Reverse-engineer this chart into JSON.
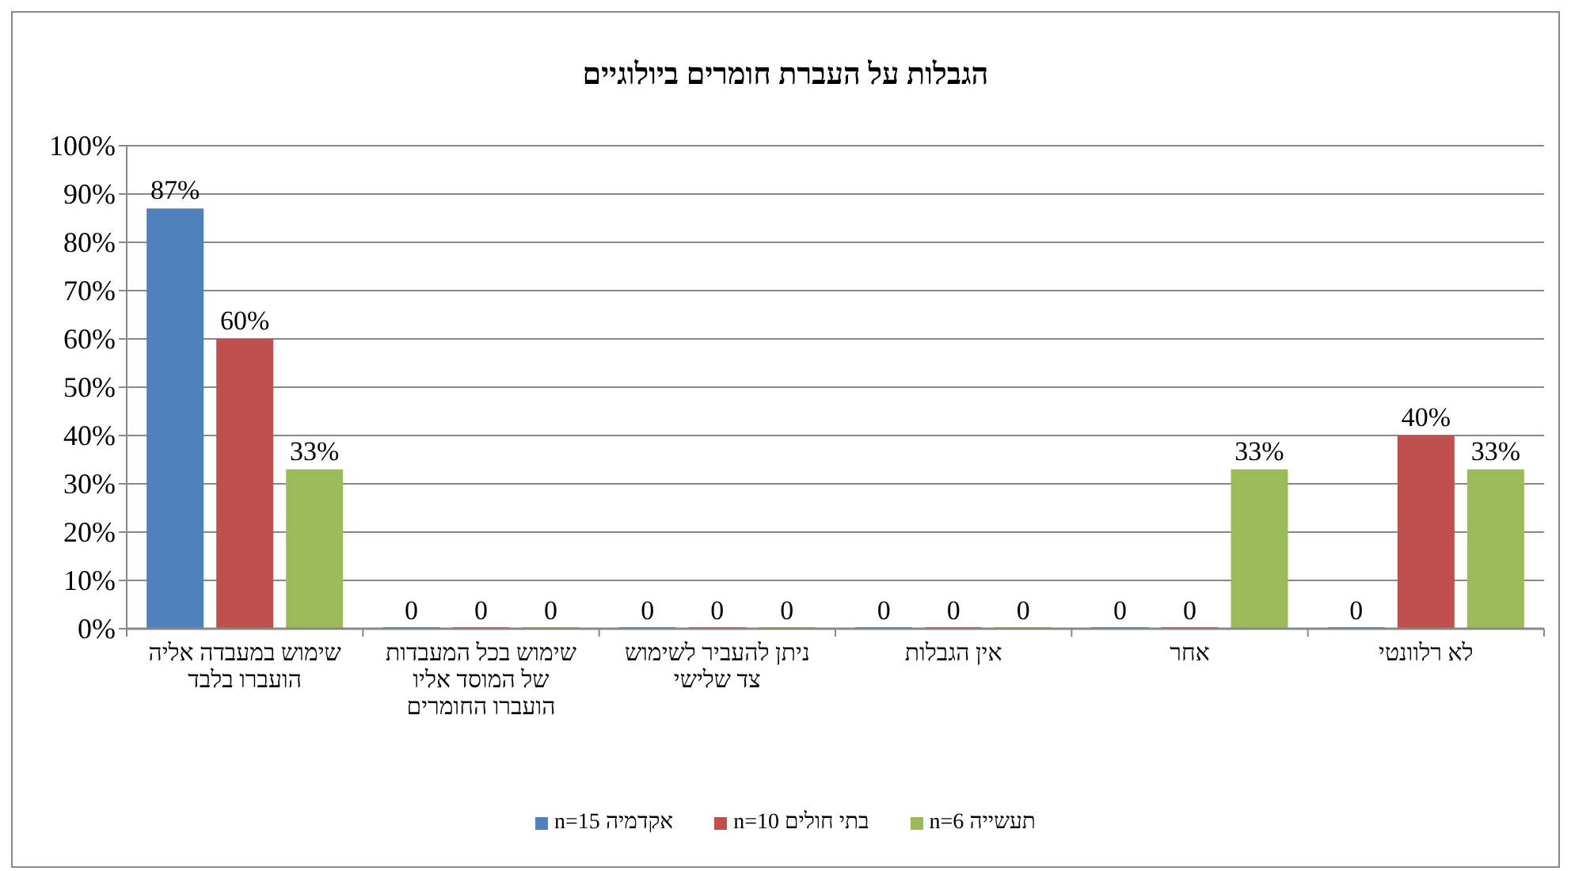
{
  "chart_data": {
    "type": "bar",
    "title": "הגבלות על העברת חומרים ביולוגיים",
    "categories": [
      "שימוש במעבדה אליה הועברו בלבד",
      "שימוש בכל המעבדות של המוסד אליו הועברו החומרים",
      "ניתן להעביר לשימוש צד שלישי",
      "אין הגבלות",
      "אחר",
      "לא רלוונטי"
    ],
    "series": [
      {
        "name": "אקדמיה n=15",
        "color": "#4f81bd",
        "values": [
          87,
          0,
          0,
          0,
          0,
          0
        ],
        "value_labels": [
          "87%",
          "0",
          "0",
          "0",
          "0",
          "0"
        ]
      },
      {
        "name": "בתי חולים n=10",
        "color": "#c0504d",
        "values": [
          60,
          0,
          0,
          0,
          0,
          40
        ],
        "value_labels": [
          "60%",
          "0",
          "0",
          "0",
          "0",
          "40%"
        ]
      },
      {
        "name": "תעשייה n=6",
        "color": "#9bbb59",
        "values": [
          33,
          0,
          0,
          0,
          33,
          33
        ],
        "value_labels": [
          "33%",
          "0",
          "0",
          "0",
          "33%",
          "33%"
        ]
      }
    ],
    "ylim": [
      0,
      100
    ],
    "yticks": [
      {
        "value": 0,
        "label": "0%"
      },
      {
        "value": 10,
        "label": "10%"
      },
      {
        "value": 20,
        "label": "20%"
      },
      {
        "value": 30,
        "label": "30%"
      },
      {
        "value": 40,
        "label": "40%"
      },
      {
        "value": 50,
        "label": "50%"
      },
      {
        "value": 60,
        "label": "60%"
      },
      {
        "value": 70,
        "label": "70%"
      },
      {
        "value": 80,
        "label": "80%"
      },
      {
        "value": 90,
        "label": "90%"
      },
      {
        "value": 100,
        "label": "100%"
      }
    ],
    "grid": "y",
    "legend": "bottom"
  }
}
